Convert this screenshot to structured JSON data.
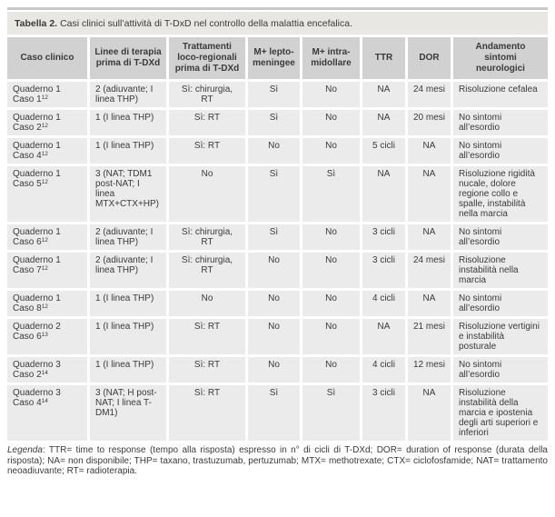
{
  "title": {
    "label": "Tabella 2.",
    "text": "Casi clinici sull’attività di T-DxD nel controllo della malattia encefalica."
  },
  "table": {
    "columns": [
      "Caso clinico",
      "Linee di terapia\nprima di T-DXd",
      "Trattamenti\nloco-regionali\nprima di T-DXd",
      "M+ lepto-\nmeningee",
      "M+ intra-\nmidollare",
      "TTR",
      "DOR",
      "Andamento\nsintomi\nneurologici"
    ],
    "rows": [
      {
        "line1": "Quaderno 1",
        "line2": "Caso 1",
        "ref": "12",
        "linee": "2 (adiuvante; I linea THP)",
        "trattamenti": "Sì: chirurgia, RT",
        "lepto": "Sì",
        "intra": "No",
        "ttr": "NA",
        "dor": "24 mesi",
        "andamento": "Risoluzione cefalea"
      },
      {
        "line1": "Quaderno 1",
        "line2": "Caso 2",
        "ref": "12",
        "linee": "1 (I linea THP)",
        "trattamenti": "Sì: RT",
        "lepto": "Sì",
        "intra": "No",
        "ttr": "NA",
        "dor": "20 mesi",
        "andamento": "No sintomi all’esordio"
      },
      {
        "line1": "Quaderno 1",
        "line2": "Caso 4",
        "ref": "12",
        "linee": "1 (I linea THP)",
        "trattamenti": "Sì: RT",
        "lepto": "No",
        "intra": "No",
        "ttr": "5 cicli",
        "dor": "NA",
        "andamento": "No sintomi all’esordio"
      },
      {
        "line1": "Quaderno 1",
        "line2": "Caso 5",
        "ref": "12",
        "linee": "3 (NAT; TDM1 post-NAT; I linea MTX+CTX+HP)",
        "trattamenti": "No",
        "lepto": "Sì",
        "intra": "Sì",
        "ttr": "NA",
        "dor": "NA",
        "andamento": "Risoluzione rigidità nucale, dolore regione collo e spalle, instabilità nella marcia"
      },
      {
        "line1": "Quaderno 1",
        "line2": "Caso 6",
        "ref": "12",
        "linee": "2 (adiuvante; I linea THP)",
        "trattamenti": "Sì: chirurgia, RT",
        "lepto": "Sì",
        "intra": "No",
        "ttr": "3 cicli",
        "dor": "NA",
        "andamento": "No sintomi all’esordio"
      },
      {
        "line1": "Quaderno 1",
        "line2": "Caso 7",
        "ref": "12",
        "linee": "2 (adiuvante; I linea THP)",
        "trattamenti": "Sì: chirurgia, RT",
        "lepto": "No",
        "intra": "No",
        "ttr": "3 cicli",
        "dor": "24 mesi",
        "andamento": "Risoluzione instabilità nella marcia"
      },
      {
        "line1": "Quaderno 1",
        "line2": "Caso 8",
        "ref": "12",
        "linee": "1 (I linea THP)",
        "trattamenti": "No",
        "lepto": "No",
        "intra": "No",
        "ttr": "4 cicli",
        "dor": "NA",
        "andamento": "No sintomi all’esordio"
      },
      {
        "line1": "Quaderno 2",
        "line2": "Caso 6",
        "ref": "13",
        "linee": "1 (I linea THP)",
        "trattamenti": "Sì: RT",
        "lepto": "No",
        "intra": "No",
        "ttr": "NA",
        "dor": "21 mesi",
        "andamento": "Risoluzione vertigini e instabilità posturale"
      },
      {
        "line1": "Quaderno 3",
        "line2": "Caso 2",
        "ref": "14",
        "linee": "1 (I linea THP)",
        "trattamenti": "Sì: RT",
        "lepto": "No",
        "intra": "No",
        "ttr": "4 cicli",
        "dor": "12 mesi",
        "andamento": "No sintomi all’esordio"
      },
      {
        "line1": "Quaderno 3",
        "line2": "Caso 4",
        "ref": "14",
        "linee": "3 (NAT; H post-NAT; I linea T-DM1)",
        "trattamenti": "Sì: RT",
        "lepto": "Sì",
        "intra": "Sì",
        "ttr": "3 cicli",
        "dor": "NA",
        "andamento": "Risoluzione instabilità della marcia e ipostenia degli arti superiori e inferiori"
      }
    ]
  },
  "legend": {
    "label": "Legenda",
    "text": ": TTR= time to response (tempo alla risposta) espresso in n° di cicli di T-DXd; DOR= duration of response (durata della risposta); NA= non disponibile; THP= taxano, trastuzumab, pertuzumab; MTX= methotrexate; CTX= ciclofosfamide; NAT= trattamento neoadiuvante; RT= radioterapia."
  },
  "colors": {
    "title_bar_bg": "#e9e7e3",
    "header_cell_bg": "#d2d1d1",
    "body_cell_bg": "#ecebeb",
    "top_rule": "#c9c9c9",
    "text": "#3a3a3a"
  }
}
